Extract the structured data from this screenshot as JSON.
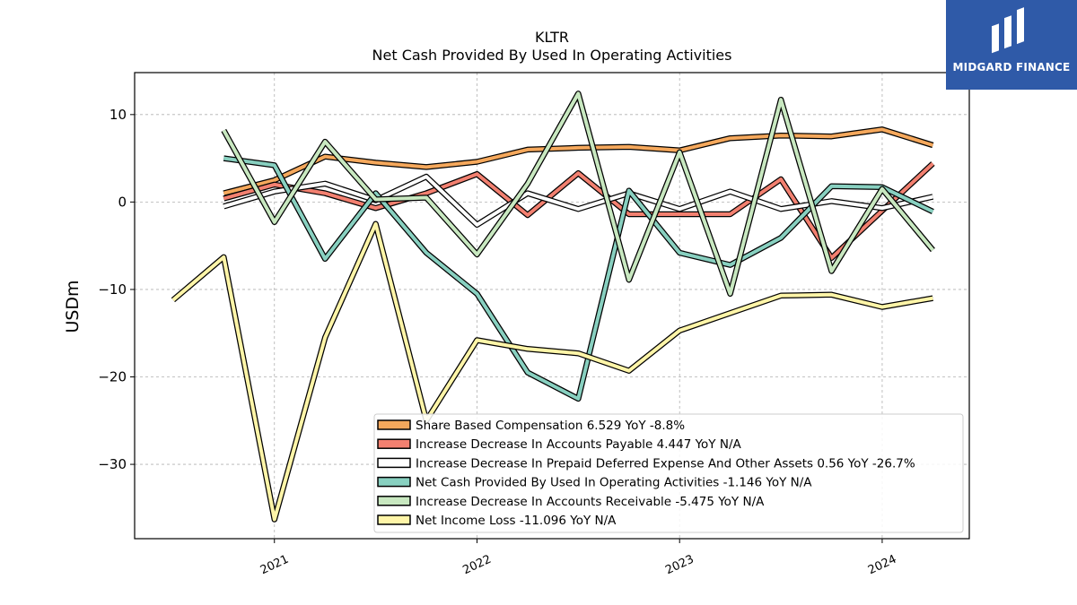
{
  "logo": {
    "text": "MIDGARD FINANCE"
  },
  "chart_data": {
    "type": "line",
    "title": "KLTR",
    "subtitle": "Net Cash Provided By Used In Operating Activities",
    "ylabel": "USDm",
    "xlabel": "",
    "ylim": [
      -38.5,
      14.8
    ],
    "xlim": [
      2020.31,
      2024.43
    ],
    "yticks": [
      10,
      0,
      -10,
      -20,
      -30
    ],
    "ytick_labels": [
      "10",
      "0",
      "−10",
      "−20",
      "−30"
    ],
    "xticks": [
      2021,
      2022,
      2023,
      2024
    ],
    "xtick_labels": [
      "2021",
      "2022",
      "2023",
      "2024"
    ],
    "grid": true,
    "legend_position": "lower-right",
    "series": [
      {
        "name": "Share Based Compensation",
        "legend": "Share Based Compensation  6.529 YoY -8.8%",
        "color": "#f5a85c",
        "x": [
          2020.75,
          2021.0,
          2021.25,
          2021.5,
          2021.75,
          2022.0,
          2022.25,
          2022.5,
          2022.75,
          2023.0,
          2023.25,
          2023.5,
          2023.75,
          2024.0,
          2024.25
        ],
        "values": [
          1.0,
          2.5,
          5.2,
          4.5,
          4.0,
          4.6,
          6.0,
          6.2,
          6.3,
          5.9,
          7.3,
          7.6,
          7.5,
          8.3,
          6.5
        ]
      },
      {
        "name": "Increase Decrease In Accounts Payable",
        "legend": "Increase Decrease In Accounts Payable  4.447 YoY N/A",
        "color": "#f28070",
        "x": [
          2020.75,
          2021.0,
          2021.25,
          2021.5,
          2021.75,
          2022.0,
          2022.25,
          2022.5,
          2022.75,
          2023.0,
          2023.25,
          2023.5,
          2023.75,
          2024.0,
          2024.25
        ],
        "values": [
          0.4,
          2.0,
          1.0,
          -0.7,
          1.0,
          3.2,
          -1.5,
          3.3,
          -1.4,
          -1.4,
          -1.4,
          2.6,
          -6.4,
          -1.0,
          4.4
        ]
      },
      {
        "name": "Increase Decrease In Prepaid Deferred Expense And Other Assets",
        "legend": "Increase Decrease In Prepaid Deferred Expense And Other Assets  0.56 YoY -26.7%",
        "color": "#ffffff",
        "x": [
          2020.75,
          2021.0,
          2021.25,
          2021.5,
          2021.75,
          2022.0,
          2022.25,
          2022.5,
          2022.75,
          2023.0,
          2023.25,
          2023.5,
          2023.75,
          2024.0,
          2024.25
        ],
        "values": [
          -0.5,
          1.2,
          2.1,
          0.2,
          2.9,
          -2.6,
          1.0,
          -0.8,
          1.0,
          -0.8,
          1.2,
          -0.8,
          0.1,
          -0.7,
          0.6
        ]
      },
      {
        "name": "Net Cash Provided By Used In Operating Activities",
        "legend": "Net Cash Provided By Used In Operating Activities  -1.146 YoY N/A",
        "color": "#88d0c0",
        "x": [
          2020.75,
          2021.0,
          2021.25,
          2021.5,
          2021.75,
          2022.0,
          2022.25,
          2022.5,
          2022.75,
          2023.0,
          2023.25,
          2023.5,
          2023.75,
          2024.0,
          2024.25
        ],
        "values": [
          5.0,
          4.2,
          -6.5,
          1.0,
          -5.8,
          -10.5,
          -19.5,
          -22.5,
          1.3,
          -5.8,
          -7.2,
          -4.1,
          1.8,
          1.7,
          -1.1
        ]
      },
      {
        "name": "Increase Decrease In Accounts Receivable",
        "legend": "Increase Decrease In Accounts Receivable  -5.475 YoY N/A",
        "color": "#c8e8c0",
        "x": [
          2020.75,
          2021.0,
          2021.25,
          2021.5,
          2021.75,
          2022.0,
          2022.25,
          2022.5,
          2022.75,
          2023.0,
          2023.25,
          2023.5,
          2023.75,
          2024.0,
          2024.25
        ],
        "values": [
          8.2,
          -2.3,
          6.9,
          0.3,
          0.5,
          -6.0,
          2.1,
          12.4,
          -8.9,
          5.7,
          -10.5,
          11.7,
          -7.9,
          1.5,
          -5.5
        ]
      },
      {
        "name": "Net Income Loss",
        "legend": "Net Income Loss  -11.096 YoY N/A",
        "color": "#fff5a8",
        "x": [
          2020.5,
          2020.75,
          2021.0,
          2021.25,
          2021.5,
          2021.75,
          2022.0,
          2022.25,
          2022.5,
          2022.75,
          2023.0,
          2023.25,
          2023.5,
          2023.75,
          2024.0,
          2024.25
        ],
        "values": [
          -11.2,
          -6.3,
          -36.3,
          -15.5,
          -2.5,
          -25.0,
          -15.8,
          -16.8,
          -17.3,
          -19.3,
          -14.7,
          -12.7,
          -10.7,
          -10.6,
          -12.0,
          -11.0
        ]
      }
    ]
  }
}
